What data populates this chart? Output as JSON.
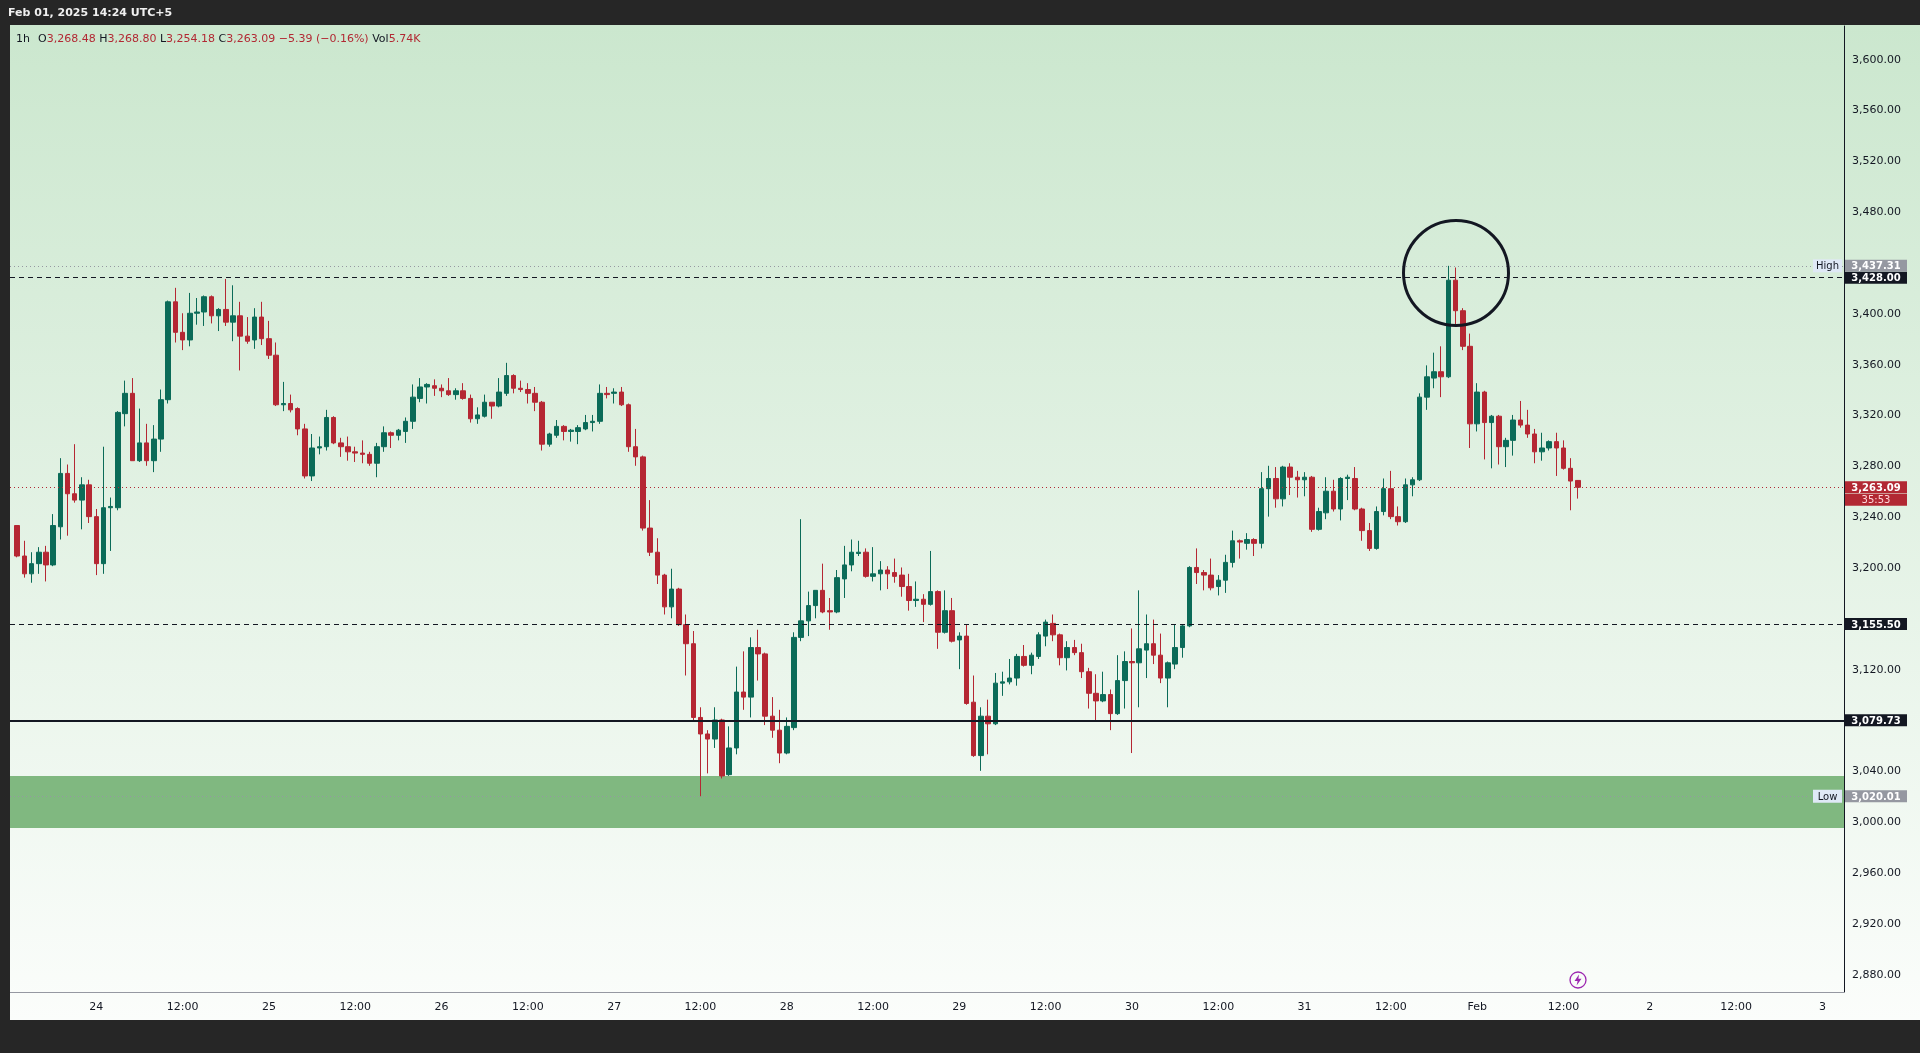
{
  "chart_data": {
    "type": "candlestick",
    "title": "1h",
    "annotations": [
      "Feb 01, 2025 14:24 UTC+5",
      "O3,268.48 H3,268.80 L3,254.18 C3,263.09 −5.39 (−0.16%) Vol5.74K",
      "35:53"
    ],
    "x": [
      "2025-01-23T13:00",
      "2025-01-23T14:00",
      "2025-01-23T15:00",
      "2025-01-23T16:00",
      "2025-01-23T17:00",
      "2025-01-23T18:00",
      "2025-01-23T19:00",
      "2025-01-23T20:00",
      "2025-01-23T21:00",
      "2025-01-23T22:00",
      "2025-01-23T23:00",
      "2025-01-24T00:00",
      "2025-01-24T01:00",
      "2025-01-24T02:00",
      "2025-01-24T03:00",
      "2025-01-24T04:00",
      "2025-01-24T05:00",
      "2025-01-24T06:00",
      "2025-01-24T07:00",
      "2025-01-24T08:00",
      "2025-01-24T09:00",
      "2025-01-24T10:00",
      "2025-01-24T11:00",
      "2025-01-24T12:00",
      "2025-01-24T13:00",
      "2025-01-24T14:00",
      "2025-01-24T15:00",
      "2025-01-24T16:00",
      "2025-01-24T17:00",
      "2025-01-24T18:00",
      "2025-01-24T19:00",
      "2025-01-24T20:00",
      "2025-01-24T21:00",
      "2025-01-24T22:00",
      "2025-01-24T23:00",
      "2025-01-25T00:00",
      "2025-01-25T01:00",
      "2025-01-25T02:00",
      "2025-01-25T03:00",
      "2025-01-25T04:00",
      "2025-01-25T05:00",
      "2025-01-25T06:00",
      "2025-01-25T07:00",
      "2025-01-25T08:00",
      "2025-01-25T09:00",
      "2025-01-25T10:00",
      "2025-01-25T11:00",
      "2025-01-25T12:00",
      "2025-01-25T13:00",
      "2025-01-25T14:00",
      "2025-01-25T15:00",
      "2025-01-25T16:00",
      "2025-01-25T17:00",
      "2025-01-25T18:00",
      "2025-01-25T19:00",
      "2025-01-25T20:00",
      "2025-01-25T21:00",
      "2025-01-25T22:00",
      "2025-01-25T23:00",
      "2025-01-26T00:00",
      "2025-01-26T01:00",
      "2025-01-26T02:00",
      "2025-01-26T03:00",
      "2025-01-26T04:00",
      "2025-01-26T05:00",
      "2025-01-26T06:00",
      "2025-01-26T07:00",
      "2025-01-26T08:00",
      "2025-01-26T09:00",
      "2025-01-26T10:00",
      "2025-01-26T11:00",
      "2025-01-26T12:00",
      "2025-01-26T13:00",
      "2025-01-26T14:00",
      "2025-01-26T15:00",
      "2025-01-26T16:00",
      "2025-01-26T17:00",
      "2025-01-26T18:00",
      "2025-01-26T19:00",
      "2025-01-26T20:00",
      "2025-01-26T21:00",
      "2025-01-26T22:00",
      "2025-01-26T23:00",
      "2025-01-27T00:00",
      "2025-01-27T01:00",
      "2025-01-27T02:00",
      "2025-01-27T03:00",
      "2025-01-27T04:00",
      "2025-01-27T05:00",
      "2025-01-27T06:00",
      "2025-01-27T07:00",
      "2025-01-27T08:00",
      "2025-01-27T09:00",
      "2025-01-27T10:00",
      "2025-01-27T11:00",
      "2025-01-27T12:00",
      "2025-01-27T13:00",
      "2025-01-27T14:00",
      "2025-01-27T15:00",
      "2025-01-27T16:00",
      "2025-01-27T17:00",
      "2025-01-27T18:00",
      "2025-01-27T19:00",
      "2025-01-27T20:00",
      "2025-01-27T21:00",
      "2025-01-27T22:00",
      "2025-01-27T23:00",
      "2025-01-28T00:00",
      "2025-01-28T01:00",
      "2025-01-28T02:00",
      "2025-01-28T03:00",
      "2025-01-28T04:00",
      "2025-01-28T05:00",
      "2025-01-28T06:00",
      "2025-01-28T07:00",
      "2025-01-28T08:00",
      "2025-01-28T09:00",
      "2025-01-28T10:00",
      "2025-01-28T11:00",
      "2025-01-28T12:00",
      "2025-01-28T13:00",
      "2025-01-28T14:00",
      "2025-01-28T15:00",
      "2025-01-28T16:00",
      "2025-01-28T17:00",
      "2025-01-28T18:00",
      "2025-01-28T19:00",
      "2025-01-28T20:00",
      "2025-01-28T21:00",
      "2025-01-28T22:00",
      "2025-01-28T23:00",
      "2025-01-29T00:00",
      "2025-01-29T01:00",
      "2025-01-29T02:00",
      "2025-01-29T03:00",
      "2025-01-29T04:00",
      "2025-01-29T05:00",
      "2025-01-29T06:00",
      "2025-01-29T07:00",
      "2025-01-29T08:00",
      "2025-01-29T09:00",
      "2025-01-29T10:00",
      "2025-01-29T11:00",
      "2025-01-29T12:00",
      "2025-01-29T13:00",
      "2025-01-29T14:00",
      "2025-01-29T15:00",
      "2025-01-29T16:00",
      "2025-01-29T17:00",
      "2025-01-29T18:00",
      "2025-01-29T19:00",
      "2025-01-29T20:00",
      "2025-01-29T21:00",
      "2025-01-29T22:00",
      "2025-01-29T23:00",
      "2025-01-30T00:00",
      "2025-01-30T01:00",
      "2025-01-30T02:00",
      "2025-01-30T03:00",
      "2025-01-30T04:00",
      "2025-01-30T05:00",
      "2025-01-30T06:00",
      "2025-01-30T07:00",
      "2025-01-30T08:00",
      "2025-01-30T09:00",
      "2025-01-30T10:00",
      "2025-01-30T11:00",
      "2025-01-30T12:00",
      "2025-01-30T13:00",
      "2025-01-30T14:00",
      "2025-01-30T15:00",
      "2025-01-30T16:00",
      "2025-01-30T17:00",
      "2025-01-30T18:00",
      "2025-01-30T19:00",
      "2025-01-30T20:00",
      "2025-01-30T21:00",
      "2025-01-30T22:00",
      "2025-01-30T23:00",
      "2025-01-31T00:00",
      "2025-01-31T01:00",
      "2025-01-31T02:00",
      "2025-01-31T03:00",
      "2025-01-31T04:00",
      "2025-01-31T05:00",
      "2025-01-31T06:00",
      "2025-01-31T07:00",
      "2025-01-31T08:00",
      "2025-01-31T09:00",
      "2025-01-31T10:00",
      "2025-01-31T11:00",
      "2025-01-31T12:00",
      "2025-01-31T13:00",
      "2025-01-31T14:00",
      "2025-01-31T15:00",
      "2025-01-31T16:00",
      "2025-01-31T17:00",
      "2025-01-31T18:00",
      "2025-01-31T19:00",
      "2025-01-31T20:00",
      "2025-01-31T21:00",
      "2025-01-31T22:00",
      "2025-01-31T23:00",
      "2025-02-01T00:00",
      "2025-02-01T01:00",
      "2025-02-01T02:00",
      "2025-02-01T03:00",
      "2025-02-01T04:00",
      "2025-02-01T05:00",
      "2025-02-01T06:00",
      "2025-02-01T07:00",
      "2025-02-01T08:00",
      "2025-02-01T09:00",
      "2025-02-01T10:00",
      "2025-02-01T11:00",
      "2025-02-01T12:00",
      "2025-02-01T13:00",
      "2025-02-01T14:00"
    ],
    "ohlc": [
      [
        3233,
        3233,
        3208,
        3209
      ],
      [
        3209,
        3221,
        3192,
        3195
      ],
      [
        3195,
        3212,
        3188,
        3203
      ],
      [
        3203,
        3216,
        3195,
        3212
      ],
      [
        3212,
        3217,
        3189,
        3202
      ],
      [
        3202,
        3242,
        3201,
        3233
      ],
      [
        3232,
        3286,
        3222,
        3274
      ],
      [
        3274,
        3281,
        3225,
        3258
      ],
      [
        3258,
        3297,
        3251,
        3253
      ],
      [
        3253,
        3271,
        3230,
        3265
      ],
      [
        3265,
        3269,
        3235,
        3240
      ],
      [
        3240,
        3246,
        3194,
        3203
      ],
      [
        3203,
        3295,
        3195,
        3247
      ],
      [
        3247,
        3255,
        3213,
        3248
      ],
      [
        3247,
        3323,
        3245,
        3322
      ],
      [
        3321,
        3347,
        3311,
        3337
      ],
      [
        3337,
        3349,
        3284,
        3284
      ],
      [
        3284,
        3325,
        3283,
        3298
      ],
      [
        3298,
        3313,
        3280,
        3284
      ],
      [
        3284,
        3312,
        3275,
        3301
      ],
      [
        3301,
        3340,
        3291,
        3332
      ],
      [
        3332,
        3410,
        3329,
        3409
      ],
      [
        3409,
        3420,
        3377,
        3385
      ],
      [
        3385,
        3400,
        3371,
        3379
      ],
      [
        3379,
        3416,
        3374,
        3400
      ],
      [
        3400,
        3412,
        3391,
        3401
      ],
      [
        3401,
        3414,
        3390,
        3413
      ],
      [
        3413,
        3414,
        3392,
        3398
      ],
      [
        3398,
        3404,
        3386,
        3403
      ],
      [
        3403,
        3427,
        3390,
        3393
      ],
      [
        3393,
        3422,
        3378,
        3398
      ],
      [
        3398,
        3409,
        3355,
        3382
      ],
      [
        3382,
        3397,
        3376,
        3378
      ],
      [
        3379,
        3404,
        3372,
        3397
      ],
      [
        3397,
        3409,
        3375,
        3380
      ],
      [
        3380,
        3394,
        3364,
        3367
      ],
      [
        3367,
        3377,
        3327,
        3328
      ],
      [
        3328,
        3346,
        3323,
        3329
      ],
      [
        3329,
        3336,
        3322,
        3324
      ],
      [
        3325,
        3326,
        3304,
        3309
      ],
      [
        3309,
        3313,
        3270,
        3272
      ],
      [
        3272,
        3305,
        3268,
        3294
      ],
      [
        3294,
        3303,
        3289,
        3295
      ],
      [
        3295,
        3324,
        3292,
        3318
      ],
      [
        3318,
        3319,
        3297,
        3298
      ],
      [
        3298,
        3302,
        3287,
        3295
      ],
      [
        3295,
        3303,
        3284,
        3291
      ],
      [
        3291,
        3295,
        3283,
        3290
      ],
      [
        3290,
        3300,
        3282,
        3289
      ],
      [
        3289,
        3291,
        3280,
        3282
      ],
      [
        3282,
        3298,
        3271,
        3295
      ],
      [
        3295,
        3311,
        3291,
        3306
      ],
      [
        3306,
        3307,
        3294,
        3304
      ],
      [
        3304,
        3309,
        3300,
        3308
      ],
      [
        3307,
        3318,
        3298,
        3315
      ],
      [
        3315,
        3344,
        3309,
        3334
      ],
      [
        3333,
        3349,
        3330,
        3342
      ],
      [
        3342,
        3345,
        3329,
        3344
      ],
      [
        3343,
        3348,
        3335,
        3341
      ],
      [
        3341,
        3344,
        3334,
        3339
      ],
      [
        3339,
        3349,
        3335,
        3336
      ],
      [
        3336,
        3341,
        3332,
        3339
      ],
      [
        3339,
        3345,
        3332,
        3333
      ],
      [
        3333,
        3336,
        3314,
        3317
      ],
      [
        3317,
        3326,
        3313,
        3320
      ],
      [
        3319,
        3336,
        3318,
        3330
      ],
      [
        3330,
        3330,
        3317,
        3327
      ],
      [
        3327,
        3349,
        3326,
        3338
      ],
      [
        3337,
        3361,
        3335,
        3351
      ],
      [
        3351,
        3352,
        3337,
        3341
      ],
      [
        3341,
        3347,
        3338,
        3340
      ],
      [
        3340,
        3345,
        3329,
        3337
      ],
      [
        3337,
        3342,
        3323,
        3330
      ],
      [
        3330,
        3331,
        3292,
        3297
      ],
      [
        3297,
        3306,
        3295,
        3305
      ],
      [
        3304,
        3316,
        3302,
        3311
      ],
      [
        3311,
        3312,
        3300,
        3307
      ],
      [
        3307,
        3309,
        3299,
        3308
      ],
      [
        3307,
        3312,
        3297,
        3310
      ],
      [
        3309,
        3320,
        3308,
        3314
      ],
      [
        3314,
        3320,
        3307,
        3315
      ],
      [
        3315,
        3344,
        3313,
        3337
      ],
      [
        3337,
        3342,
        3333,
        3336
      ],
      [
        3337,
        3341,
        3329,
        3338
      ],
      [
        3338,
        3342,
        3327,
        3328
      ],
      [
        3328,
        3329,
        3291,
        3295
      ],
      [
        3295,
        3309,
        3280,
        3287
      ],
      [
        3287,
        3288,
        3229,
        3231
      ],
      [
        3231,
        3253,
        3209,
        3212
      ],
      [
        3212,
        3223,
        3187,
        3194
      ],
      [
        3194,
        3195,
        3163,
        3169
      ],
      [
        3169,
        3199,
        3160,
        3183
      ],
      [
        3183,
        3184,
        3154,
        3155
      ],
      [
        3155,
        3163,
        3115,
        3140
      ],
      [
        3140,
        3150,
        3079,
        3082
      ],
      [
        3082,
        3090,
        3020.01,
        3069
      ],
      [
        3069,
        3072,
        3038,
        3065
      ],
      [
        3065,
        3090,
        3058,
        3080
      ],
      [
        3080,
        3081,
        3034,
        3036
      ],
      [
        3037,
        3075,
        3036,
        3058
      ],
      [
        3058,
        3122,
        3053,
        3102
      ],
      [
        3102,
        3134,
        3088,
        3098
      ],
      [
        3098,
        3145,
        3082,
        3137
      ],
      [
        3137,
        3151,
        3111,
        3132
      ],
      [
        3132,
        3133,
        3076,
        3083
      ],
      [
        3083,
        3098,
        3066,
        3072
      ],
      [
        3072,
        3088,
        3046,
        3054
      ],
      [
        3054,
        3082,
        3053,
        3075
      ],
      [
        3074,
        3149,
        3072,
        3145
      ],
      [
        3145,
        3238,
        3142,
        3158
      ],
      [
        3158,
        3181,
        3146,
        3170
      ],
      [
        3170,
        3182,
        3160,
        3182
      ],
      [
        3182,
        3203,
        3164,
        3165
      ],
      [
        3166,
        3176,
        3151,
        3165
      ],
      [
        3165,
        3198,
        3164,
        3192
      ],
      [
        3191,
        3217,
        3176,
        3202
      ],
      [
        3202,
        3222,
        3197,
        3212
      ],
      [
        3211,
        3221,
        3209,
        3212
      ],
      [
        3212,
        3215,
        3192,
        3193
      ],
      [
        3193,
        3216,
        3189,
        3195
      ],
      [
        3195,
        3205,
        3182,
        3198
      ],
      [
        3198,
        3201,
        3183,
        3195
      ],
      [
        3196,
        3207,
        3188,
        3193
      ],
      [
        3194,
        3200,
        3177,
        3185
      ],
      [
        3185,
        3195,
        3166,
        3174
      ],
      [
        3174,
        3189,
        3169,
        3175
      ],
      [
        3175,
        3179,
        3157,
        3171
      ],
      [
        3171,
        3213,
        3170,
        3181
      ],
      [
        3181,
        3182,
        3136,
        3149
      ],
      [
        3149,
        3182,
        3148,
        3166
      ],
      [
        3166,
        3176,
        3141,
        3142
      ],
      [
        3143,
        3149,
        3120,
        3146
      ],
      [
        3146,
        3155,
        3092,
        3093
      ],
      [
        3094,
        3115,
        3051,
        3052
      ],
      [
        3052,
        3090,
        3040,
        3083
      ],
      [
        3083,
        3096,
        3053,
        3077
      ],
      [
        3077,
        3117,
        3076,
        3109
      ],
      [
        3109,
        3118,
        3099,
        3110
      ],
      [
        3110,
        3128,
        3108,
        3113
      ],
      [
        3113,
        3132,
        3107,
        3130
      ],
      [
        3130,
        3139,
        3122,
        3123
      ],
      [
        3123,
        3133,
        3116,
        3131
      ],
      [
        3130,
        3149,
        3128,
        3147
      ],
      [
        3146,
        3159,
        3138,
        3157
      ],
      [
        3156,
        3163,
        3142,
        3147
      ],
      [
        3147,
        3148,
        3123,
        3129
      ],
      [
        3129,
        3142,
        3119,
        3137
      ],
      [
        3137,
        3143,
        3131,
        3133
      ],
      [
        3133,
        3140,
        3113,
        3118
      ],
      [
        3118,
        3121,
        3089,
        3101
      ],
      [
        3101,
        3116,
        3080,
        3095
      ],
      [
        3095,
        3118,
        3094,
        3100
      ],
      [
        3100,
        3104,
        3072,
        3085
      ],
      [
        3085,
        3131,
        3084,
        3111
      ],
      [
        3111,
        3134,
        3089,
        3126
      ],
      [
        3126,
        3152,
        3054,
        3125
      ],
      [
        3125,
        3182,
        3090,
        3136
      ],
      [
        3135,
        3163,
        3113,
        3140
      ],
      [
        3140,
        3159,
        3124,
        3131
      ],
      [
        3131,
        3148,
        3109,
        3113
      ],
      [
        3113,
        3126,
        3090,
        3125
      ],
      [
        3124,
        3155,
        3120,
        3137
      ],
      [
        3137,
        3155,
        3129,
        3154
      ],
      [
        3154,
        3201,
        3153,
        3200
      ],
      [
        3200,
        3215,
        3187,
        3196
      ],
      [
        3196,
        3198,
        3182,
        3194
      ],
      [
        3194,
        3207,
        3182,
        3184
      ],
      [
        3185,
        3194,
        3178,
        3190
      ],
      [
        3190,
        3210,
        3180,
        3204
      ],
      [
        3204,
        3229,
        3200,
        3221
      ],
      [
        3221,
        3222,
        3207,
        3220
      ],
      [
        3219,
        3227,
        3214,
        3222
      ],
      [
        3222,
        3223,
        3209,
        3219
      ],
      [
        3219,
        3275,
        3215,
        3262
      ],
      [
        3262,
        3280,
        3240,
        3270
      ],
      [
        3270,
        3279,
        3247,
        3254
      ],
      [
        3254,
        3280,
        3248,
        3279
      ],
      [
        3279,
        3282,
        3257,
        3271
      ],
      [
        3271,
        3276,
        3255,
        3269
      ],
      [
        3269,
        3275,
        3256,
        3271
      ],
      [
        3271,
        3272,
        3228,
        3230
      ],
      [
        3230,
        3247,
        3229,
        3244
      ],
      [
        3243,
        3271,
        3238,
        3260
      ],
      [
        3260,
        3269,
        3244,
        3246
      ],
      [
        3246,
        3271,
        3237,
        3270
      ],
      [
        3270,
        3273,
        3253,
        3271
      ],
      [
        3270,
        3279,
        3245,
        3246
      ],
      [
        3246,
        3247,
        3221,
        3229
      ],
      [
        3229,
        3235,
        3213,
        3215
      ],
      [
        3215,
        3248,
        3214,
        3244
      ],
      [
        3244,
        3270,
        3241,
        3262
      ],
      [
        3262,
        3276,
        3238,
        3240
      ],
      [
        3240,
        3248,
        3233,
        3236
      ],
      [
        3236,
        3270,
        3235,
        3265
      ],
      [
        3265,
        3271,
        3256,
        3269
      ],
      [
        3269,
        3337,
        3268,
        3334
      ],
      [
        3334,
        3359,
        3324,
        3350
      ],
      [
        3349,
        3369,
        3341,
        3354
      ],
      [
        3354,
        3374,
        3334,
        3350
      ],
      [
        3350,
        3437.31,
        3349,
        3426
      ],
      [
        3426,
        3436,
        3391,
        3402
      ],
      [
        3402,
        3404,
        3371,
        3374
      ],
      [
        3374,
        3384,
        3294,
        3313
      ],
      [
        3313,
        3345,
        3307,
        3338
      ],
      [
        3338,
        3339,
        3285,
        3314
      ],
      [
        3314,
        3320,
        3278,
        3319
      ],
      [
        3319,
        3320,
        3281,
        3295
      ],
      [
        3295,
        3302,
        3279,
        3300
      ],
      [
        3300,
        3320,
        3288,
        3316
      ],
      [
        3316,
        3331,
        3310,
        3312
      ],
      [
        3312,
        3324,
        3302,
        3305
      ],
      [
        3305,
        3309,
        3282,
        3291
      ],
      [
        3291,
        3306,
        3284,
        3294
      ],
      [
        3294,
        3300,
        3292,
        3299
      ],
      [
        3299,
        3306,
        3272,
        3294
      ],
      [
        3294,
        3300,
        3277,
        3278
      ],
      [
        3278,
        3286,
        3245,
        3268
      ],
      [
        3268.48,
        3268.8,
        3254.18,
        3263.09
      ]
    ],
    "colors": [
      "#b52733",
      "#b52733",
      "#0b6b58",
      "#0b6b58",
      "#b52733",
      "#0b6b58",
      "#0b6b58",
      "#b52733",
      "#b52733",
      "#0b6b58",
      "#b52733",
      "#b52733",
      "#0b6b58",
      "#0b6b58",
      "#0b6b58",
      "#0b6b58",
      "#b52733",
      "#0b6b58",
      "#b52733",
      "#0b6b58",
      "#0b6b58",
      "#0b6b58",
      "#b52733",
      "#b52733",
      "#0b6b58",
      "#0b6b58",
      "#0b6b58",
      "#b52733",
      "#0b6b58",
      "#b52733",
      "#0b6b58",
      "#b52733",
      "#b52733",
      "#0b6b58",
      "#b52733",
      "#b52733",
      "#b52733",
      "#0b6b58",
      "#b52733",
      "#b52733",
      "#b52733",
      "#0b6b58",
      "#0b6b58",
      "#0b6b58",
      "#b52733",
      "#b52733",
      "#b52733",
      "#b52733",
      "#b52733",
      "#b52733",
      "#0b6b58",
      "#0b6b58",
      "#b52733",
      "#0b6b58",
      "#0b6b58",
      "#0b6b58",
      "#0b6b58",
      "#0b6b58",
      "#b52733",
      "#b52733",
      "#b52733",
      "#0b6b58",
      "#b52733",
      "#b52733",
      "#0b6b58",
      "#0b6b58",
      "#b52733",
      "#0b6b58",
      "#0b6b58",
      "#b52733",
      "#b52733",
      "#b52733",
      "#b52733",
      "#b52733",
      "#0b6b58",
      "#0b6b58",
      "#b52733",
      "#0b6b58",
      "#0b6b58",
      "#0b6b58",
      "#0b6b58",
      "#0b6b58",
      "#b52733",
      "#0b6b58",
      "#b52733",
      "#b52733",
      "#b52733",
      "#b52733",
      "#b52733",
      "#b52733",
      "#b52733",
      "#0b6b58",
      "#b52733",
      "#b52733",
      "#b52733",
      "#b52733",
      "#b52733",
      "#0b6b58",
      "#b52733",
      "#0b6b58",
      "#0b6b58",
      "#b52733",
      "#0b6b58",
      "#b52733",
      "#b52733",
      "#b52733",
      "#b52733",
      "#0b6b58",
      "#0b6b58",
      "#0b6b58",
      "#0b6b58",
      "#0b6b58",
      "#b52733",
      "#b52733",
      "#0b6b58",
      "#0b6b58",
      "#0b6b58",
      "#0b6b58",
      "#b52733",
      "#0b6b58",
      "#0b6b58",
      "#b52733",
      "#b52733",
      "#b52733",
      "#b52733",
      "#0b6b58",
      "#b52733",
      "#0b6b58",
      "#b52733",
      "#0b6b58",
      "#b52733",
      "#0b6b58",
      "#b52733",
      "#b52733",
      "#0b6b58",
      "#b52733",
      "#0b6b58",
      "#0b6b58",
      "#0b6b58",
      "#0b6b58",
      "#b52733",
      "#0b6b58",
      "#0b6b58",
      "#0b6b58",
      "#b52733",
      "#b52733",
      "#0b6b58",
      "#b52733",
      "#b52733",
      "#b52733",
      "#b52733",
      "#0b6b58",
      "#b52733",
      "#0b6b58",
      "#0b6b58",
      "#b52733",
      "#0b6b58",
      "#0b6b58",
      "#b52733",
      "#b52733",
      "#0b6b58",
      "#0b6b58",
      "#0b6b58",
      "#0b6b58",
      "#b52733",
      "#b52733",
      "#b52733",
      "#0b6b58",
      "#0b6b58",
      "#0b6b58",
      "#b52733",
      "#0b6b58",
      "#b52733",
      "#0b6b58",
      "#0b6b58",
      "#b52733",
      "#0b6b58",
      "#b52733",
      "#b52733",
      "#0b6b58",
      "#b52733",
      "#0b6b58",
      "#0b6b58",
      "#b52733",
      "#0b6b58",
      "#0b6b58",
      "#b52733",
      "#b52733",
      "#b52733",
      "#0b6b58",
      "#0b6b58",
      "#b52733",
      "#b52733",
      "#0b6b58",
      "#0b6b58",
      "#0b6b58",
      "#0b6b58",
      "#0b6b58",
      "#b52733",
      "#0b6b58",
      "#b52733",
      "#b52733",
      "#b52733",
      "#0b6b58",
      "#b52733",
      "#0b6b58",
      "#b52733",
      "#0b6b58",
      "#0b6b58",
      "#b52733",
      "#b52733",
      "#b52733",
      "#0b6b58",
      "#0b6b58",
      "#b52733",
      "#b52733",
      "#b52733",
      "#b52733"
    ],
    "xlim": [
      "2025-01-23T12:00",
      "2025-02-03T03:00"
    ],
    "xticks": [
      {
        "value": "2025-01-24T00:00",
        "label": "24"
      },
      {
        "value": "2025-01-24T12:00",
        "label": "12:00"
      },
      {
        "value": "2025-01-25T00:00",
        "label": "25"
      },
      {
        "value": "2025-01-25T12:00",
        "label": "12:00"
      },
      {
        "value": "2025-01-26T00:00",
        "label": "26"
      },
      {
        "value": "2025-01-26T12:00",
        "label": "12:00"
      },
      {
        "value": "2025-01-27T00:00",
        "label": "27"
      },
      {
        "value": "2025-01-27T12:00",
        "label": "12:00"
      },
      {
        "value": "2025-01-28T00:00",
        "label": "28"
      },
      {
        "value": "2025-01-28T12:00",
        "label": "12:00"
      },
      {
        "value": "2025-01-29T00:00",
        "label": "29"
      },
      {
        "value": "2025-01-29T12:00",
        "label": "12:00"
      },
      {
        "value": "2025-01-30T00:00",
        "label": "30"
      },
      {
        "value": "2025-01-30T12:00",
        "label": "12:00"
      },
      {
        "value": "2025-01-31T00:00",
        "label": "31"
      },
      {
        "value": "2025-01-31T12:00",
        "label": "12:00"
      },
      {
        "value": "2025-02-01T00:00",
        "label": "Feb"
      },
      {
        "value": "2025-02-01T12:00",
        "label": "12:00"
      },
      {
        "value": "2025-02-02T00:00",
        "label": "2"
      },
      {
        "value": "2025-02-02T12:00",
        "label": "12:00"
      },
      {
        "value": "2025-02-03T00:00",
        "label": "3"
      }
    ],
    "ylim": [
      2866,
      3626
    ],
    "yticks": [
      {
        "value": 2880,
        "label": "2,880.00"
      },
      {
        "value": 2920,
        "label": "2,920.00"
      },
      {
        "value": 2960,
        "label": "2,960.00"
      },
      {
        "value": 3000,
        "label": "3,000.00"
      },
      {
        "value": 3020.01,
        "label": "3,020.01"
      },
      {
        "value": 3040,
        "label": "3,040.00"
      },
      {
        "value": 3079.73,
        "label": "3,079.73"
      },
      {
        "value": 3120,
        "label": "3,120.00"
      },
      {
        "value": 3155.5,
        "label": "3,155.50"
      },
      {
        "value": 3200,
        "label": "3,200.00"
      },
      {
        "value": 3240,
        "label": "3,240.00"
      },
      {
        "value": 3263.09,
        "label": "3,263.09"
      },
      {
        "value": 3280,
        "label": "3,280.00"
      },
      {
        "value": 3320,
        "label": "3,320.00"
      },
      {
        "value": 3360,
        "label": "3,360.00"
      },
      {
        "value": 3400,
        "label": "3,400.00"
      },
      {
        "value": 3428,
        "label": "3,428.00"
      },
      {
        "value": 3437.31,
        "label": "3,437.31"
      },
      {
        "value": 3480,
        "label": "3,480.00"
      },
      {
        "value": 3520,
        "label": "3,520.00"
      },
      {
        "value": 3560,
        "label": "3,560.00"
      },
      {
        "value": 3600,
        "label": "3,600.00"
      }
    ],
    "ref_lines": [
      {
        "axis": "y",
        "value": 3437.31,
        "label": "High",
        "color": "#9598a1",
        "line_style": "dotted"
      },
      {
        "axis": "y",
        "value": 3428,
        "color": "#131722",
        "line_style": "dashed"
      },
      {
        "axis": "y",
        "value": 3263.09,
        "color": "#b22833",
        "line_style": "dotted"
      },
      {
        "axis": "y",
        "value": 3155.5,
        "color": "#131722",
        "line_style": "dashed"
      },
      {
        "axis": "y",
        "value": 3079.73,
        "color": "#131722",
        "line_style": "solid"
      },
      {
        "axis": "y",
        "value": 3020.01,
        "label": "Low",
        "color": "#9598a1",
        "line_style": "dotted"
      }
    ],
    "bands": [
      {
        "axis": "y",
        "from": 2995,
        "to": 3036,
        "color": "#80b880"
      }
    ]
  }
}
